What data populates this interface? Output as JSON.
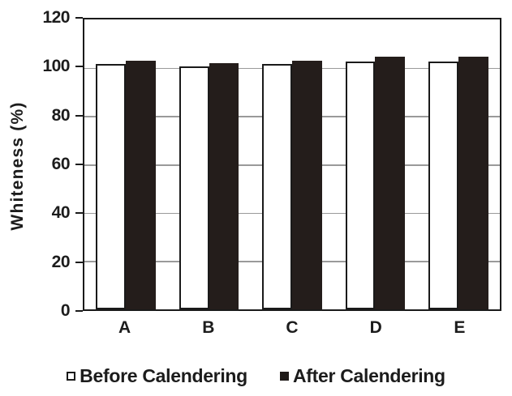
{
  "chart_data": {
    "type": "bar",
    "title": "",
    "categories": [
      "A",
      "B",
      "C",
      "D",
      "E"
    ],
    "series": [
      {
        "name": "Before Calendering",
        "style": "open-square",
        "color": "#ffffff",
        "values": [
          101.5,
          100.5,
          101.5,
          102.5,
          102.5
        ]
      },
      {
        "name": "After Calendering",
        "style": "filled-square",
        "color": "#241d1b",
        "values": [
          103,
          102,
          103,
          104.5,
          104.5
        ]
      }
    ],
    "xlabel": "",
    "ylabel": "Whiteness (%)",
    "ylim": [
      0,
      120
    ],
    "yticks": [
      0,
      20,
      40,
      60,
      80,
      100,
      120
    ],
    "grid": "horizontal",
    "legend_position": "bottom"
  },
  "colors": {
    "bar_after": "#241d1b",
    "axis": "#1a1a1a",
    "gridline": "#9a9a9a",
    "text": "#1c1c1c",
    "background": "#ffffff"
  }
}
